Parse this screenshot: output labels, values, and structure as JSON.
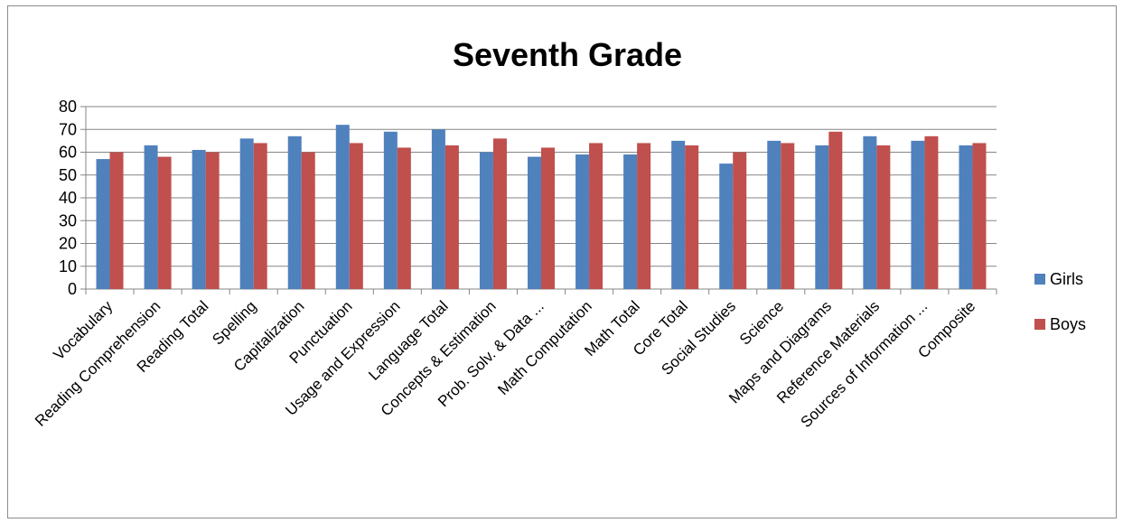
{
  "chart_data": {
    "type": "bar",
    "title": "Seventh Grade",
    "xlabel": "",
    "ylabel": "",
    "ylim": [
      0,
      80
    ],
    "yticks": [
      0,
      10,
      20,
      30,
      40,
      50,
      60,
      70,
      80
    ],
    "grid": true,
    "legend_position": "right",
    "categories": [
      "Vocabulary",
      "Reading Comprehension",
      "Reading Total",
      "Spelling",
      "Capitalization",
      "Punctuation",
      "Usage and Expression",
      "Language Total",
      "Concepts & Estimation",
      "Prob. Solv. & Data ...",
      "Math Computation",
      "Math Total",
      "Core Total",
      "Social Studies",
      "Science",
      "Maps and Diagrams",
      "Reference Materials",
      "Sources of Information ...",
      "Composite"
    ],
    "series": [
      {
        "name": "Girls",
        "color": "#4f81bd",
        "values": [
          57,
          63,
          61,
          66,
          67,
          72,
          69,
          70,
          60,
          58,
          59,
          59,
          65,
          55,
          65,
          63,
          67,
          65,
          63
        ]
      },
      {
        "name": "Boys",
        "color": "#c0504d",
        "values": [
          60,
          58,
          60,
          64,
          60,
          64,
          62,
          63,
          66,
          62,
          64,
          64,
          63,
          60,
          64,
          69,
          63,
          67,
          64
        ]
      }
    ]
  }
}
